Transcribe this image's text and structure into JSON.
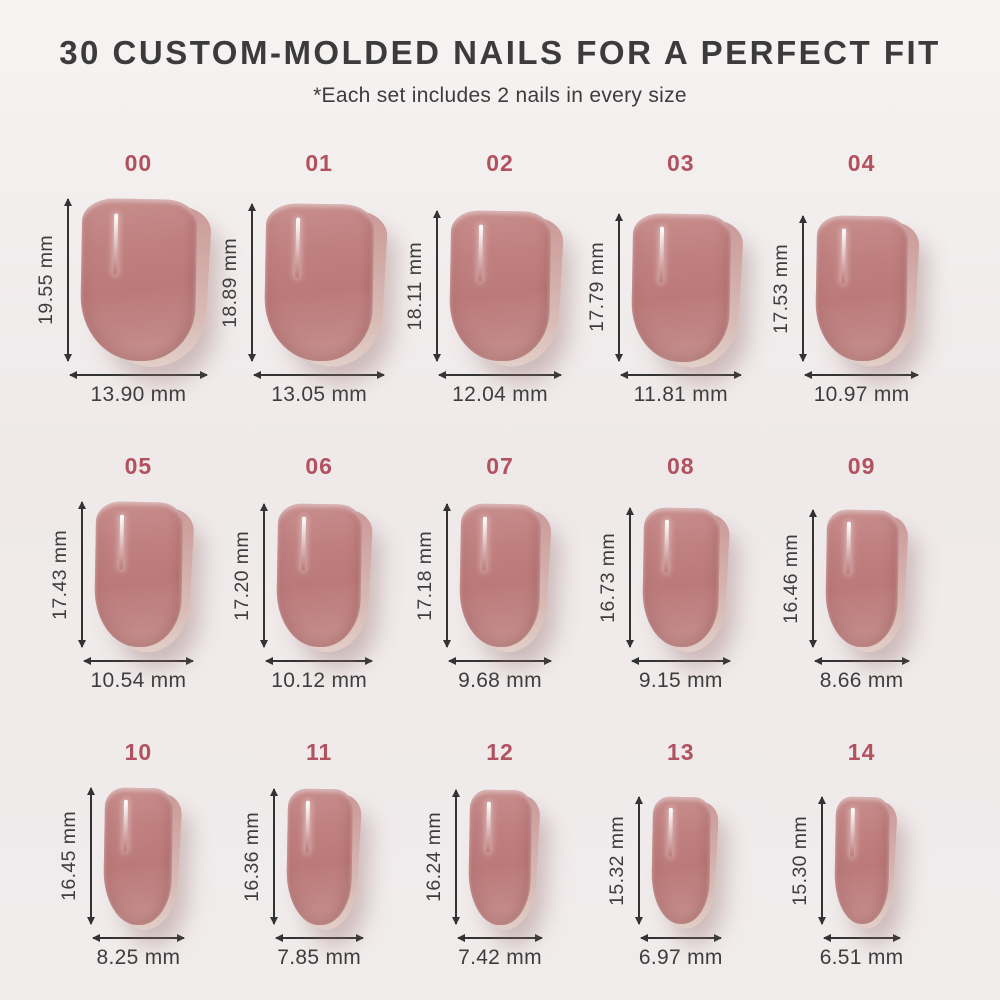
{
  "page": {
    "title": "30 CUSTOM-MOLDED NAILS FOR A PERFECT FIT",
    "subtitle": "*Each set includes 2 nails in every size"
  },
  "unit": "mm",
  "colors": {
    "background": "#f1ecec",
    "title_text": "#3b3b3b",
    "size_number_accent": "#b25160",
    "measurement_text": "#3d3d3d",
    "dimension_arrow": "#333333",
    "nail_base": "#bb7a79",
    "nail_highlight": "#c88e8d",
    "nail_back_layer": "#d9bcb6"
  },
  "sizes": [
    {
      "id": "00",
      "height_mm": "19.55",
      "width_mm": "13.90"
    },
    {
      "id": "01",
      "height_mm": "18.89",
      "width_mm": "13.05"
    },
    {
      "id": "02",
      "height_mm": "18.11",
      "width_mm": "12.04"
    },
    {
      "id": "03",
      "height_mm": "17.79",
      "width_mm": "11.81"
    },
    {
      "id": "04",
      "height_mm": "17.53",
      "width_mm": "10.97"
    },
    {
      "id": "05",
      "height_mm": "17.43",
      "width_mm": "10.54"
    },
    {
      "id": "06",
      "height_mm": "17.20",
      "width_mm": "10.12"
    },
    {
      "id": "07",
      "height_mm": "17.18",
      "width_mm": "9.68"
    },
    {
      "id": "08",
      "height_mm": "16.73",
      "width_mm": "9.15"
    },
    {
      "id": "09",
      "height_mm": "16.46",
      "width_mm": "8.66"
    },
    {
      "id": "10",
      "height_mm": "16.45",
      "width_mm": "8.25"
    },
    {
      "id": "11",
      "height_mm": "16.36",
      "width_mm": "7.85"
    },
    {
      "id": "12",
      "height_mm": "16.24",
      "width_mm": "7.42"
    },
    {
      "id": "13",
      "height_mm": "15.32",
      "width_mm": "6.97"
    },
    {
      "id": "14",
      "height_mm": "15.30",
      "width_mm": "6.51"
    }
  ],
  "sizes_per_row": 5
}
